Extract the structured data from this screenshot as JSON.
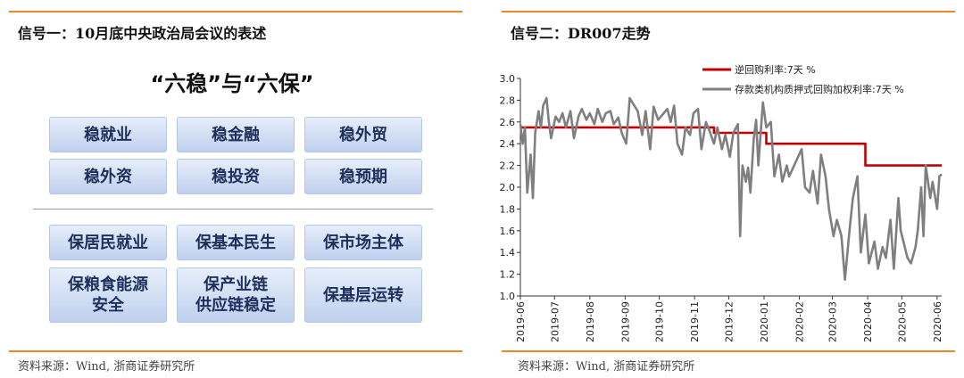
{
  "left_panel": {
    "title": "信号一：10月底中央政治局会议的表述",
    "heading": "“六稳”与“六保”",
    "six_stabilities": [
      "稳就业",
      "稳金融",
      "稳外贸",
      "稳外资",
      "稳投资",
      "稳预期"
    ],
    "six_guarantees": [
      "保居民就业",
      "保基本民生",
      "保市场主体",
      "保粮食能源安全",
      "保产业链供应链稳定",
      "保基层运转"
    ],
    "source": "资料来源：Wind, 浙商证券研究所"
  },
  "right_panel": {
    "title": "信号二：DR007走势",
    "source": "资料来源：Wind, 浙商证券研究所"
  },
  "colors": {
    "accent_rule": "#e8892b",
    "reverse_repo": "#c00000",
    "dr007": "#7f7f7f",
    "box_text": "#1f2f5c"
  },
  "chart_data": {
    "type": "line",
    "title": "",
    "xlabel": "",
    "ylabel": "",
    "ylim": [
      1.0,
      3.0
    ],
    "yticks": [
      "1.0",
      "1.2",
      "1.4",
      "1.6",
      "1.8",
      "2.0",
      "2.2",
      "2.4",
      "2.6",
      "2.8",
      "3.0"
    ],
    "xticks": [
      "2019-06",
      "2019-07",
      "2019-08",
      "2019-09",
      "2019-10",
      "2019-11",
      "2019-12",
      "2020-01",
      "2020-02",
      "2020-03",
      "2020-04",
      "2020-05",
      "2020-06"
    ],
    "xlim": [
      "2019-06-01",
      "2020-06-05"
    ],
    "legend_position": "top",
    "series": [
      {
        "name": "逆回购利率:7天 %",
        "step": true,
        "x": [
          "2019-06-01",
          "2019-11-18",
          "2019-11-18",
          "2020-01-03",
          "2020-01-03",
          "2020-03-30",
          "2020-03-30",
          "2020-06-05"
        ],
        "values": [
          2.55,
          2.55,
          2.5,
          2.5,
          2.4,
          2.4,
          2.2,
          2.2
        ]
      },
      {
        "name": "存款类机构质押式回购加权利率:7天 %",
        "x": [
          "2019-06-01",
          "2019-06-03",
          "2019-06-05",
          "2019-06-07",
          "2019-06-10",
          "2019-06-12",
          "2019-06-14",
          "2019-06-17",
          "2019-06-19",
          "2019-06-21",
          "2019-06-24",
          "2019-06-26",
          "2019-06-28",
          "2019-07-02",
          "2019-07-05",
          "2019-07-08",
          "2019-07-11",
          "2019-07-15",
          "2019-07-18",
          "2019-07-22",
          "2019-07-25",
          "2019-07-29",
          "2019-08-01",
          "2019-08-05",
          "2019-08-08",
          "2019-08-12",
          "2019-08-15",
          "2019-08-19",
          "2019-08-22",
          "2019-08-26",
          "2019-08-29",
          "2019-09-02",
          "2019-09-05",
          "2019-09-09",
          "2019-09-12",
          "2019-09-16",
          "2019-09-19",
          "2019-09-23",
          "2019-09-26",
          "2019-09-30",
          "2019-10-08",
          "2019-10-11",
          "2019-10-14",
          "2019-10-17",
          "2019-10-21",
          "2019-10-24",
          "2019-10-28",
          "2019-10-31",
          "2019-11-04",
          "2019-11-07",
          "2019-11-11",
          "2019-11-14",
          "2019-11-18",
          "2019-11-21",
          "2019-11-25",
          "2019-11-28",
          "2019-12-02",
          "2019-12-05",
          "2019-12-09",
          "2019-12-11",
          "2019-12-13",
          "2019-12-16",
          "2019-12-18",
          "2019-12-20",
          "2019-12-23",
          "2019-12-25",
          "2019-12-27",
          "2019-12-31",
          "2020-01-03",
          "2020-01-07",
          "2020-01-10",
          "2020-01-14",
          "2020-01-17",
          "2020-01-21",
          "2020-01-23",
          "2020-02-03",
          "2020-02-06",
          "2020-02-10",
          "2020-02-13",
          "2020-02-17",
          "2020-02-20",
          "2020-02-24",
          "2020-02-27",
          "2020-03-02",
          "2020-03-05",
          "2020-03-09",
          "2020-03-12",
          "2020-03-16",
          "2020-03-19",
          "2020-03-23",
          "2020-03-26",
          "2020-03-30",
          "2020-04-02",
          "2020-04-07",
          "2020-04-10",
          "2020-04-14",
          "2020-04-17",
          "2020-04-21",
          "2020-04-24",
          "2020-04-28",
          "2020-04-30",
          "2020-05-06",
          "2020-05-09",
          "2020-05-13",
          "2020-05-15",
          "2020-05-18",
          "2020-05-20",
          "2020-05-22",
          "2020-05-26",
          "2020-05-28",
          "2020-06-01",
          "2020-06-03",
          "2020-06-05"
        ],
        "values": [
          2.58,
          2.4,
          2.55,
          1.95,
          2.3,
          1.9,
          2.5,
          2.7,
          2.55,
          2.75,
          2.82,
          2.6,
          2.45,
          2.65,
          2.6,
          2.68,
          2.55,
          2.7,
          2.45,
          2.65,
          2.72,
          2.62,
          2.68,
          2.58,
          2.72,
          2.6,
          2.68,
          2.7,
          2.58,
          2.64,
          2.5,
          2.4,
          2.82,
          2.75,
          2.7,
          2.48,
          2.7,
          2.35,
          2.74,
          2.62,
          2.72,
          2.6,
          2.75,
          2.4,
          2.3,
          2.55,
          2.48,
          2.68,
          2.72,
          2.35,
          2.6,
          2.52,
          2.4,
          2.55,
          2.35,
          2.48,
          2.28,
          2.5,
          2.58,
          1.55,
          2.2,
          2.05,
          2.18,
          1.95,
          2.45,
          2.62,
          2.2,
          2.78,
          2.55,
          2.6,
          2.1,
          2.3,
          2.05,
          2.2,
          2.1,
          2.35,
          2.0,
          1.95,
          2.15,
          1.85,
          2.3,
          2.1,
          1.8,
          1.55,
          1.7,
          1.55,
          1.15,
          1.6,
          1.9,
          2.1,
          1.4,
          1.75,
          1.3,
          1.5,
          1.25,
          1.45,
          1.35,
          1.7,
          1.25,
          1.9,
          1.6,
          1.35,
          1.3,
          1.45,
          1.6,
          2.0,
          1.55,
          2.2,
          1.9,
          2.05,
          1.8,
          2.1,
          2.12
        ]
      }
    ]
  }
}
